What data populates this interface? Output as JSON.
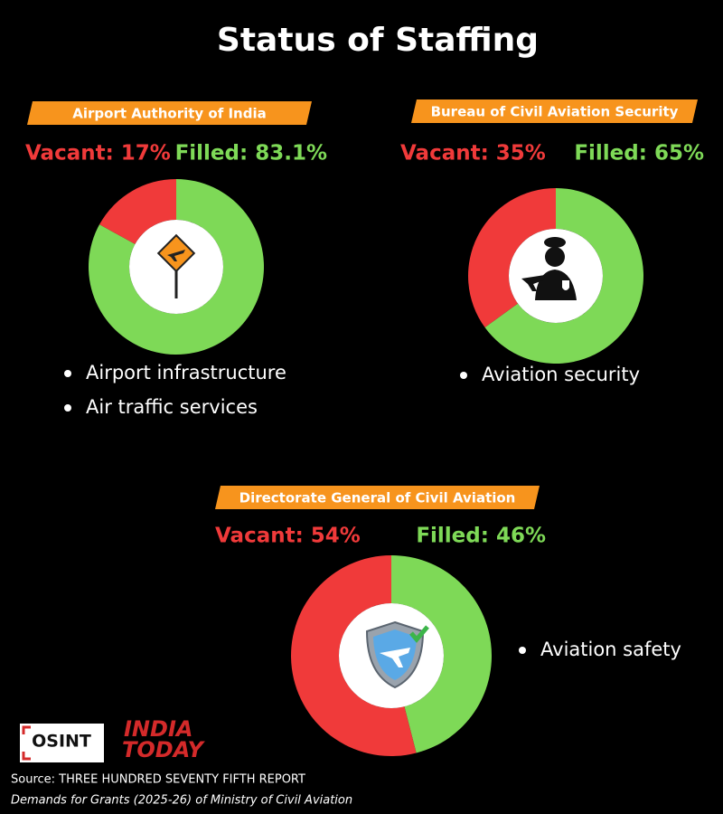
{
  "title": "Status of Staffing",
  "logos": {
    "osint": "OSINT",
    "india_today": [
      "INDIA",
      "TODAY"
    ]
  },
  "source": [
    "Source: THREE HUNDRED SEVENTY FIFTH REPORT",
    "Demands for Grants (2025-26) of Ministry of Civil Aviation"
  ],
  "chart_data": [
    {
      "type": "pie",
      "donut": true,
      "title": "Airport Authority of India",
      "categories": [
        "Vacant",
        "Filled"
      ],
      "values": [
        17,
        83.1
      ],
      "value_labels": [
        "Vacant: 17%",
        "Filled: 83.1%"
      ],
      "colors": [
        "#f03a3a",
        "#7ed957"
      ],
      "notes": [
        "Airport infrastructure",
        "Air traffic services"
      ]
    },
    {
      "type": "pie",
      "donut": true,
      "title": "Bureau of Civil Aviation Security",
      "categories": [
        "Vacant",
        "Filled"
      ],
      "values": [
        35,
        65
      ],
      "value_labels": [
        "Vacant: 35%",
        "Filled: 65%"
      ],
      "colors": [
        "#f03a3a",
        "#7ed957"
      ],
      "notes": [
        "Aviation security"
      ]
    },
    {
      "type": "pie",
      "donut": true,
      "title": "Directorate General of Civil Aviation",
      "categories": [
        "Vacant",
        "Filled"
      ],
      "values": [
        54,
        46
      ],
      "value_labels": [
        "Vacant: 54%",
        "Filled: 46%"
      ],
      "colors": [
        "#f03a3a",
        "#7ed957"
      ],
      "notes": [
        "Aviation safety"
      ]
    }
  ]
}
